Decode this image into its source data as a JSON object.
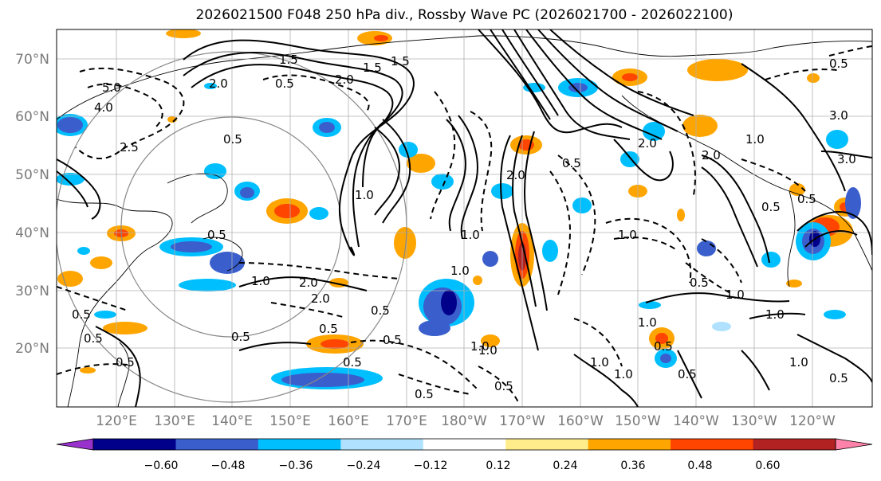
{
  "title": "2026021500 F048 250 hPa div., Rossby Wave PC (2026021700 - 2026022100)",
  "lat_labels": [
    "70°N",
    "60°N",
    "50°N",
    "40°N",
    "30°N",
    "20°N"
  ],
  "lon_labels": [
    "120°E",
    "130°E",
    "140°E",
    "150°E",
    "160°E",
    "170°E",
    "180°W",
    "170°W",
    "160°W",
    "150°W",
    "140°W",
    "130°W",
    "120°W"
  ],
  "colorbar": {
    "colors": [
      "#9932cc",
      "#00008b",
      "#3a5fcd",
      "#00bfff",
      "#b0e2ff",
      "#ffffff",
      "#ffec8b",
      "#ffa500",
      "#ff4500",
      "#b22222",
      "#ff82ab"
    ],
    "tick_labels": [
      "−0.60",
      "−0.48",
      "−0.36",
      "−0.24",
      "−0.12",
      "0.12",
      "0.24",
      "0.36",
      "0.48",
      "0.60"
    ]
  },
  "contour_labels": [
    "4.0",
    "5.0",
    "2.5",
    "0.5",
    "0.5",
    "2.0",
    "1.0",
    "0.5",
    "2.0",
    "1.5",
    "1.0",
    "2.0",
    "0.5",
    "0.5",
    "1.5",
    "3.0",
    "2.0",
    "0.5",
    "1.0",
    "1.0",
    "0.5",
    "2.0",
    "0.5",
    "0.5",
    "1.0",
    "0.5",
    "0.5",
    "0.5",
    "1.0",
    "1.0",
    "0.5",
    "1.0",
    "1.0",
    "0.5",
    "0.5",
    "0.5",
    "1.0",
    "1.0",
    "1.5",
    "0.5",
    "3.0",
    "2.0",
    "0.5",
    "1.0",
    "0.5",
    "1.0",
    "0.5",
    "0.5",
    "1.0",
    "2.0"
  ]
}
